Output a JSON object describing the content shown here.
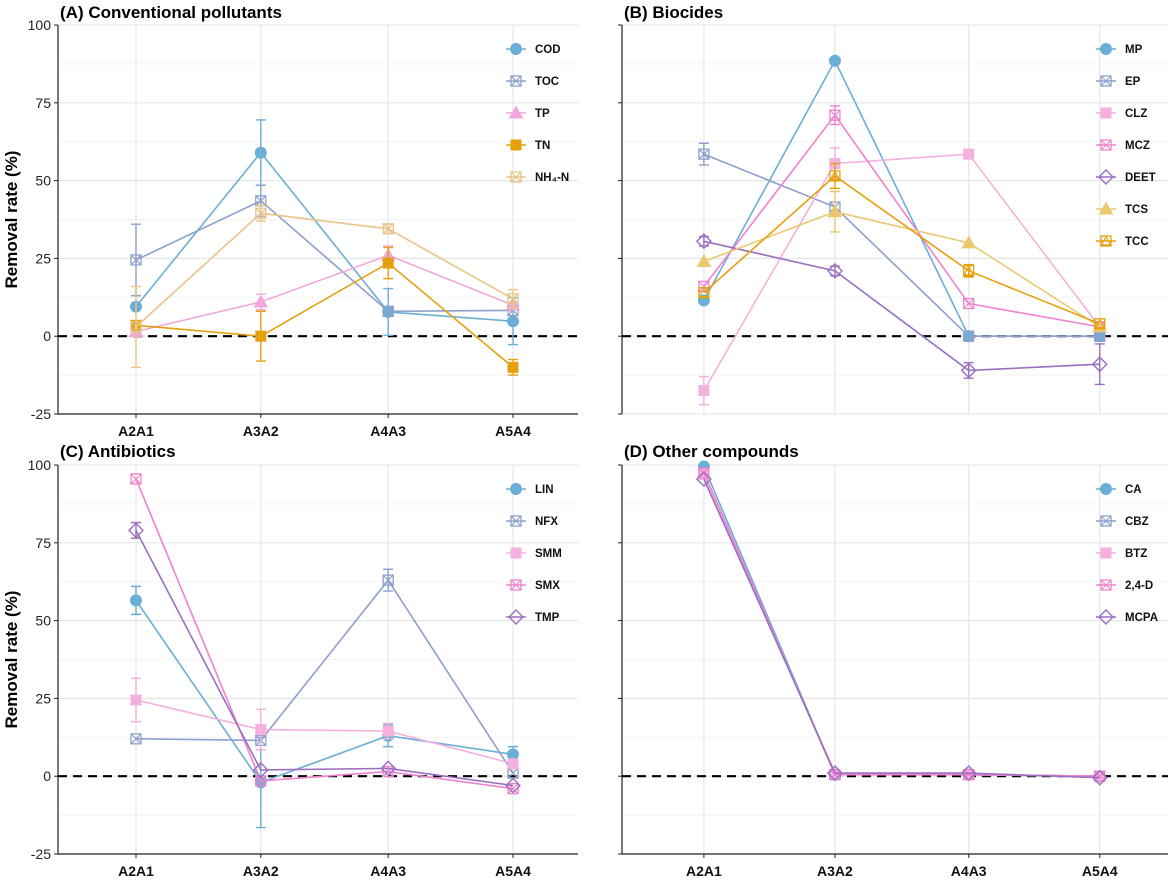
{
  "chart_data": [
    {
      "type": "line",
      "panel": "A",
      "title": "(A) Conventional pollutants",
      "ylabel": "Removal rate (%)",
      "xlabel": "",
      "ylim": [
        -25,
        100
      ],
      "yticks": [
        "100",
        "75",
        "50",
        "25",
        "0",
        "-25"
      ],
      "categories": [
        "A2A1",
        "A3A2",
        "A4A3",
        "A5A4"
      ],
      "series": [
        {
          "name": "COD",
          "color": "#6BAED6",
          "marker": "circle",
          "values": [
            9.5,
            59,
            7.8,
            4.8
          ],
          "errors": [
            null,
            10.5,
            7.5,
            7.5
          ]
        },
        {
          "name": "TOC",
          "color": "#8DA0CB",
          "marker": "square-x",
          "values": [
            24.5,
            43.5,
            8,
            8.3
          ],
          "errors": [
            11.5,
            5,
            null,
            null
          ]
        },
        {
          "name": "TP",
          "color": "#F0A8DC",
          "marker": "triangle",
          "values": [
            1.5,
            11,
            26,
            10
          ],
          "errors": [
            null,
            2.5,
            3,
            null
          ]
        },
        {
          "name": "TN",
          "color": "#E5A00D",
          "marker": "square",
          "values": [
            3.5,
            0,
            23.5,
            -10
          ],
          "errors": [
            null,
            8,
            5,
            2.5
          ]
        },
        {
          "name": "NH₄-N",
          "color": "#E8C48A",
          "marker": "square-x",
          "values": [
            3,
            39.5,
            34.5,
            12
          ],
          "errors": [
            13,
            2.5,
            1.5,
            3
          ]
        }
      ]
    },
    {
      "type": "line",
      "panel": "B",
      "title": "(B) Biocides",
      "ylabel": "",
      "xlabel": "",
      "ylim": [
        -25,
        100
      ],
      "categories": [
        "A2A1",
        "A3A2",
        "A4A3",
        "A5A4"
      ],
      "series": [
        {
          "name": "MP",
          "color": "#6BAED6",
          "marker": "circle",
          "values": [
            11.5,
            88.5,
            0,
            0
          ],
          "errors": [
            null,
            null,
            null,
            null
          ]
        },
        {
          "name": "EP",
          "color": "#8DA0CB",
          "marker": "square-x",
          "values": [
            58.5,
            41.5,
            0,
            0
          ],
          "errors": [
            3.5,
            null,
            null,
            null
          ]
        },
        {
          "name": "CLZ",
          "color": "#F4B0DE",
          "marker": "square",
          "values": [
            -17.5,
            55.5,
            58.5,
            3
          ],
          "errors": [
            4.5,
            5,
            null,
            null
          ]
        },
        {
          "name": "MCZ",
          "color": "#EE82CE",
          "marker": "square-x",
          "values": [
            16,
            71,
            10.5,
            3
          ],
          "errors": [
            null,
            3,
            null,
            null
          ]
        },
        {
          "name": "DEET",
          "color": "#9A6FC0",
          "marker": "diamond",
          "values": [
            30.5,
            21,
            -11,
            -9
          ],
          "errors": [
            1.5,
            1.5,
            2.5,
            6.5
          ]
        },
        {
          "name": "TCS",
          "color": "#EBC870",
          "marker": "triangle",
          "values": [
            24,
            40,
            30,
            3
          ],
          "errors": [
            null,
            6.5,
            null,
            null
          ]
        },
        {
          "name": "TCC",
          "color": "#E5A00D",
          "marker": "triangle-open",
          "values": [
            14,
            51.5,
            21,
            4
          ],
          "errors": [
            null,
            4,
            2,
            null
          ]
        }
      ]
    },
    {
      "type": "line",
      "panel": "C",
      "title": "(C) Antibiotics",
      "ylabel": "Removal rate (%)",
      "xlabel": "",
      "ylim": [
        -25,
        100
      ],
      "yticks": [
        "100",
        "75",
        "50",
        "25",
        "0",
        "-25"
      ],
      "categories": [
        "A2A1",
        "A3A2",
        "A4A3",
        "A5A4"
      ],
      "series": [
        {
          "name": "LIN",
          "color": "#6BAED6",
          "marker": "circle",
          "values": [
            56.5,
            -2,
            13,
            7
          ],
          "errors": [
            4.5,
            14.5,
            3.5,
            2.5
          ]
        },
        {
          "name": "NFX",
          "color": "#8DA0CB",
          "marker": "square-x",
          "values": [
            12,
            11.5,
            63,
            1
          ],
          "errors": [
            null,
            null,
            3.5,
            null
          ]
        },
        {
          "name": "SMM",
          "color": "#F4B0DE",
          "marker": "square",
          "values": [
            24.5,
            15,
            14.5,
            4
          ],
          "errors": [
            7,
            6.5,
            2.5,
            null
          ]
        },
        {
          "name": "SMX",
          "color": "#EE82CE",
          "marker": "square-x",
          "values": [
            95.5,
            -1.5,
            1.5,
            -4
          ],
          "errors": [
            null,
            null,
            null,
            null
          ]
        },
        {
          "name": "TMP",
          "color": "#9A6FC0",
          "marker": "diamond",
          "values": [
            79,
            2,
            2.5,
            -3
          ],
          "errors": [
            2.5,
            null,
            null,
            null
          ]
        }
      ]
    },
    {
      "type": "line",
      "panel": "D",
      "title": "(D) Other compounds",
      "ylabel": "",
      "xlabel": "",
      "ylim": [
        -25,
        100
      ],
      "categories": [
        "A2A1",
        "A3A2",
        "A4A3",
        "A5A4"
      ],
      "series": [
        {
          "name": "CA",
          "color": "#6BAED6",
          "marker": "circle",
          "values": [
            99.5,
            0.5,
            0.5,
            0
          ],
          "errors": [
            null,
            null,
            null,
            null
          ]
        },
        {
          "name": "CBZ",
          "color": "#8DA0CB",
          "marker": "square-x",
          "values": [
            97.5,
            0.5,
            0.5,
            0
          ],
          "errors": [
            null,
            null,
            null,
            null
          ]
        },
        {
          "name": "BTZ",
          "color": "#F4B0DE",
          "marker": "square",
          "values": [
            97,
            0.5,
            0.5,
            0
          ],
          "errors": [
            null,
            null,
            null,
            null
          ]
        },
        {
          "name": "2,4-D",
          "color": "#EE82CE",
          "marker": "square-x",
          "values": [
            97.5,
            0.5,
            0.5,
            0
          ],
          "errors": [
            null,
            null,
            null,
            null
          ]
        },
        {
          "name": "MCPA",
          "color": "#9A6FC0",
          "marker": "diamond",
          "values": [
            95.5,
            1,
            1,
            -0.5
          ],
          "errors": [
            null,
            null,
            null,
            null
          ]
        }
      ]
    }
  ]
}
